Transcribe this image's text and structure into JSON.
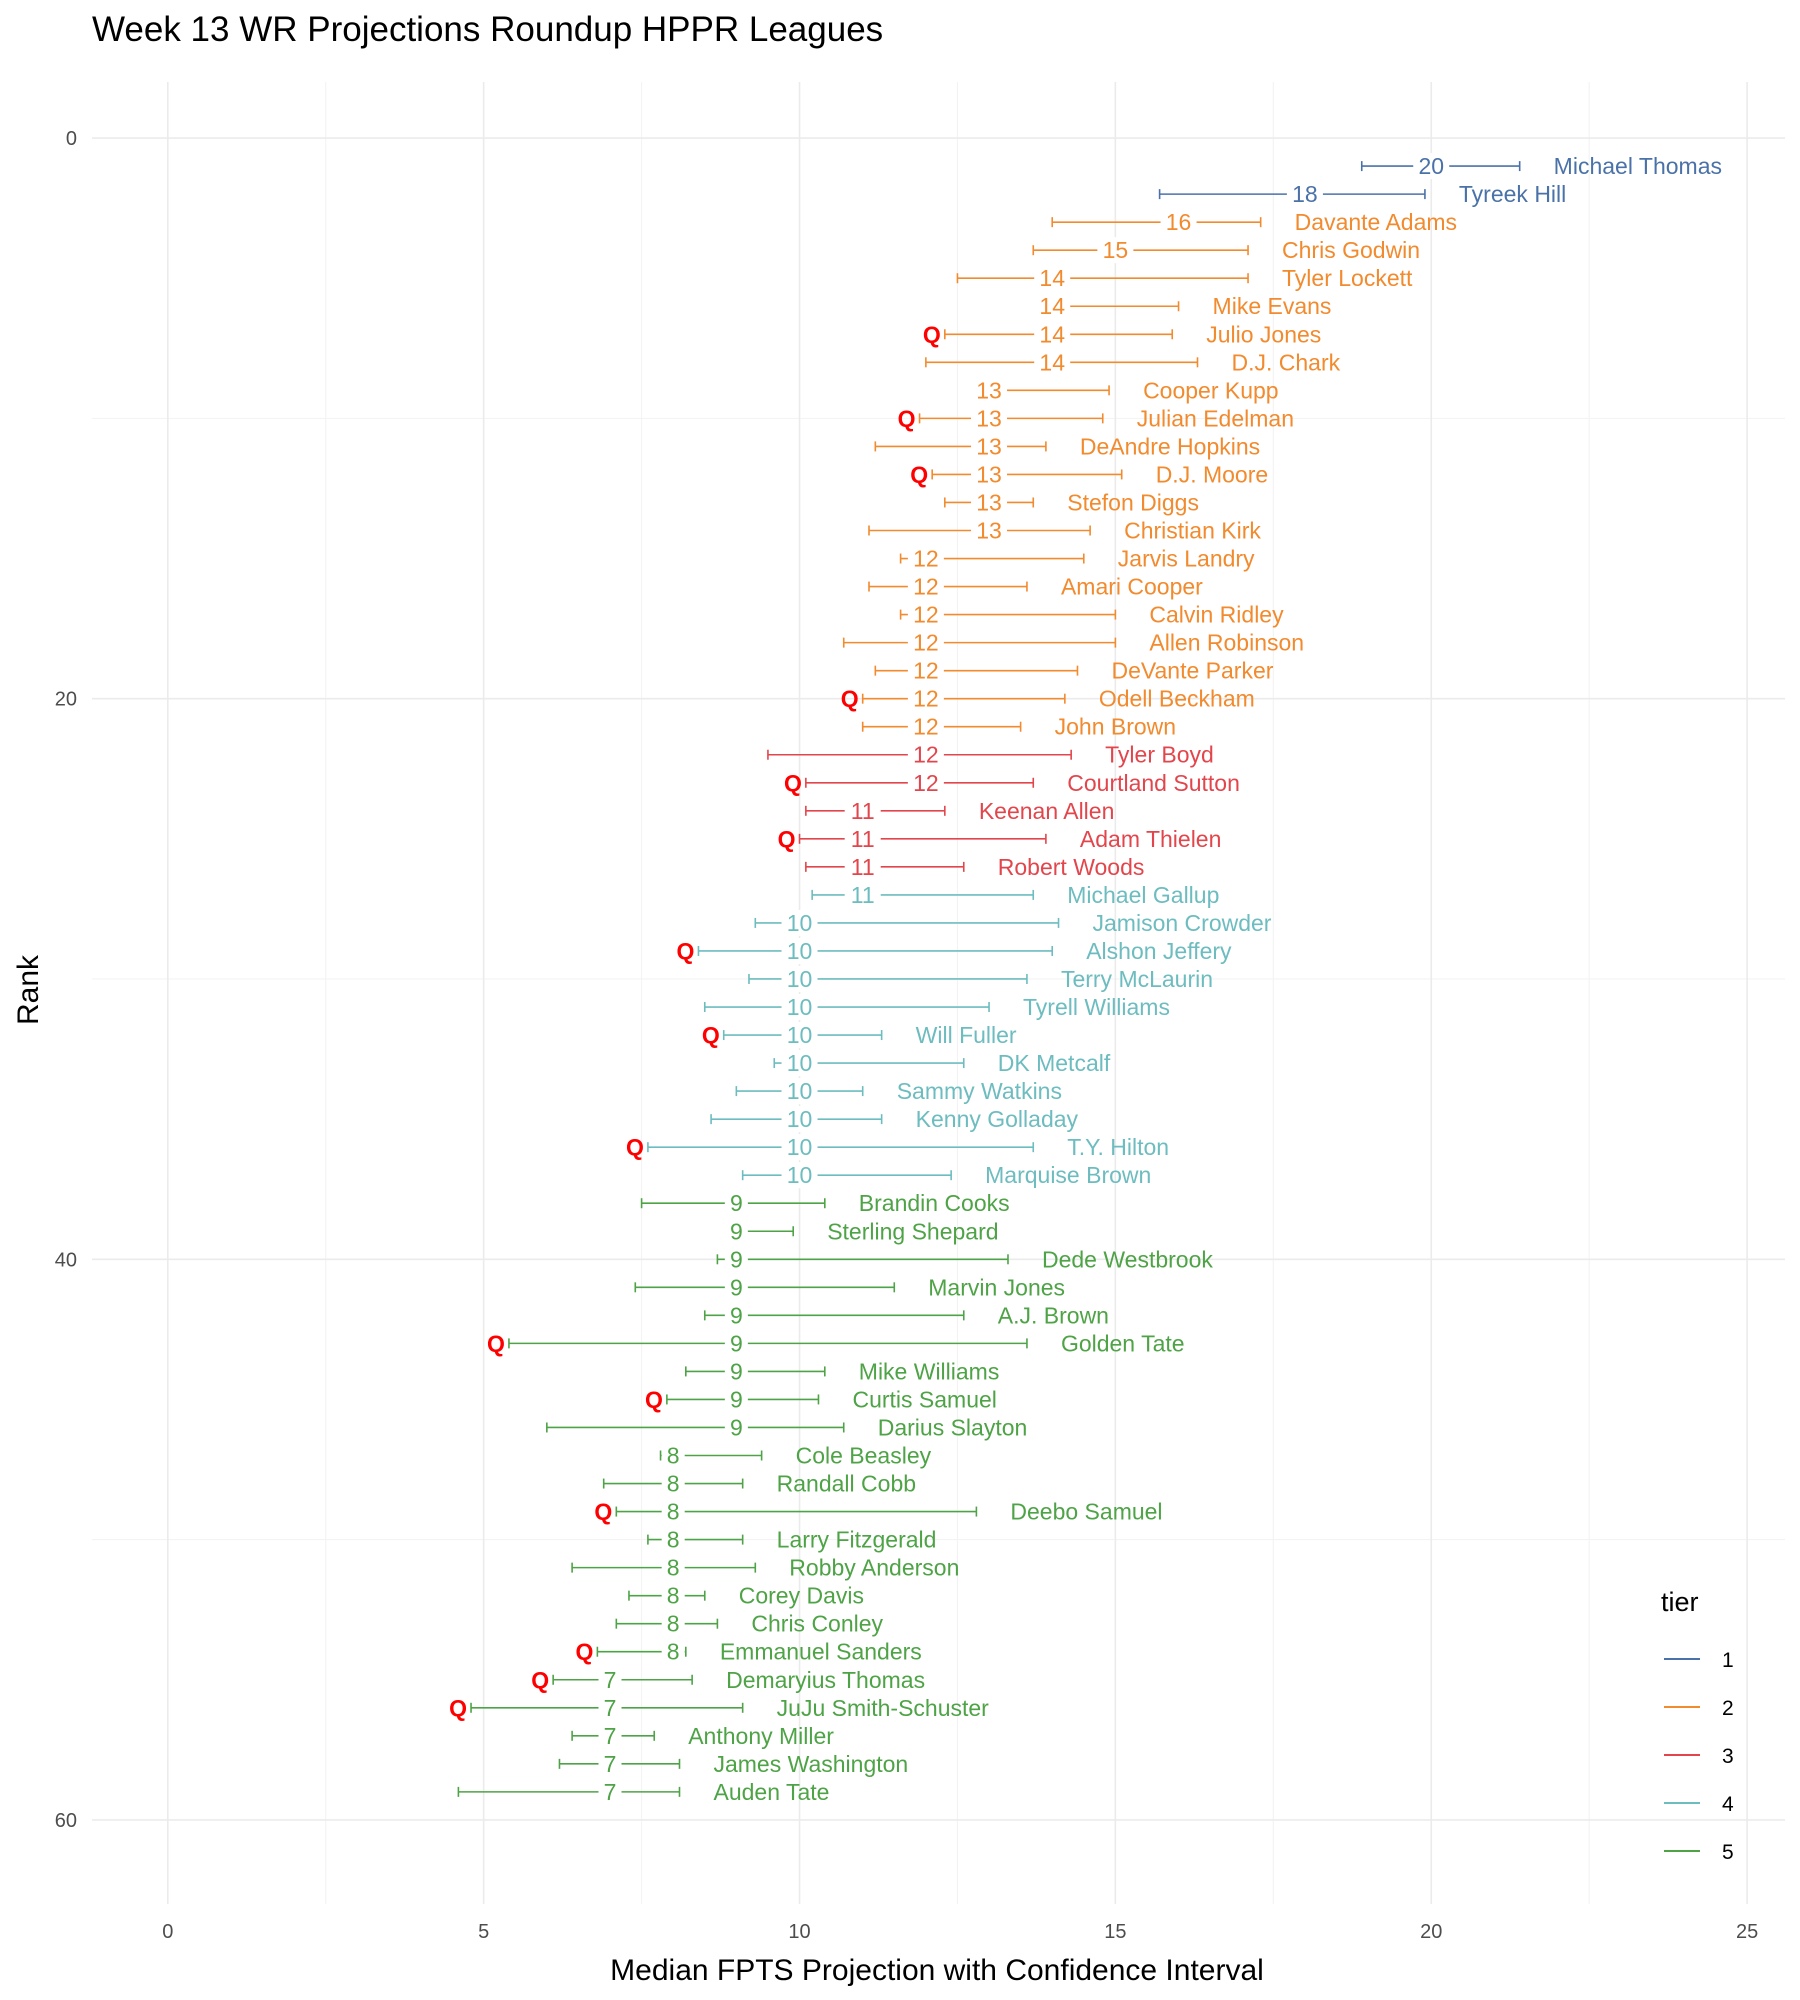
{
  "chart_data": {
    "type": "errorbar",
    "title": "Week 13 WR Projections Roundup HPPR Leagues",
    "xlabel": "Median FPTS Projection with Confidence Interval",
    "ylabel": "Rank",
    "xlim": [
      -1.2,
      25.6
    ],
    "ylim": [
      63,
      -2
    ],
    "x_ticks": [
      0,
      5,
      10,
      15,
      20,
      25
    ],
    "y_ticks": [
      0,
      20,
      40,
      60
    ],
    "legend": {
      "title": "tier",
      "placement": "right",
      "entries": [
        {
          "tier": "1",
          "color": "#4a72a8"
        },
        {
          "tier": "2",
          "color": "#f28a2e"
        },
        {
          "tier": "3",
          "color": "#e2464c"
        },
        {
          "tier": "4",
          "color": "#6dbcbf"
        },
        {
          "tier": "5",
          "color": "#4ea346"
        }
      ]
    },
    "q_marker": {
      "text": "Q",
      "color": "#ff0000"
    },
    "players": [
      {
        "rank": 1,
        "name": "Michael Thomas",
        "median": 20,
        "low": 18.9,
        "high": 21.4,
        "tier": 1,
        "q": false
      },
      {
        "rank": 2,
        "name": "Tyreek Hill",
        "median": 18,
        "low": 15.7,
        "high": 19.9,
        "tier": 1,
        "q": false
      },
      {
        "rank": 3,
        "name": "Davante Adams",
        "median": 16,
        "low": 14.0,
        "high": 17.3,
        "tier": 2,
        "q": false
      },
      {
        "rank": 4,
        "name": "Chris Godwin",
        "median": 15,
        "low": 13.7,
        "high": 17.1,
        "tier": 2,
        "q": false
      },
      {
        "rank": 5,
        "name": "Tyler Lockett",
        "median": 14,
        "low": 12.5,
        "high": 17.1,
        "tier": 2,
        "q": false
      },
      {
        "rank": 6,
        "name": "Mike Evans",
        "median": 14,
        "low": 13.9,
        "high": 16.0,
        "tier": 2,
        "q": false
      },
      {
        "rank": 7,
        "name": "Julio Jones",
        "median": 14,
        "low": 12.3,
        "high": 15.9,
        "tier": 2,
        "q": true
      },
      {
        "rank": 8,
        "name": "D.J. Chark",
        "median": 14,
        "low": 12.0,
        "high": 16.3,
        "tier": 2,
        "q": false
      },
      {
        "rank": 9,
        "name": "Cooper Kupp",
        "median": 13,
        "low": 12.8,
        "high": 14.9,
        "tier": 2,
        "q": false
      },
      {
        "rank": 10,
        "name": "Julian Edelman",
        "median": 13,
        "low": 11.9,
        "high": 14.8,
        "tier": 2,
        "q": true
      },
      {
        "rank": 11,
        "name": "DeAndre Hopkins",
        "median": 13,
        "low": 11.2,
        "high": 13.9,
        "tier": 2,
        "q": false
      },
      {
        "rank": 12,
        "name": "D.J. Moore",
        "median": 13,
        "low": 12.1,
        "high": 15.1,
        "tier": 2,
        "q": true
      },
      {
        "rank": 13,
        "name": "Stefon Diggs",
        "median": 13,
        "low": 12.3,
        "high": 13.7,
        "tier": 2,
        "q": false
      },
      {
        "rank": 14,
        "name": "Christian Kirk",
        "median": 13,
        "low": 11.1,
        "high": 14.6,
        "tier": 2,
        "q": false
      },
      {
        "rank": 15,
        "name": "Jarvis Landry",
        "median": 12,
        "low": 11.6,
        "high": 14.5,
        "tier": 2,
        "q": false
      },
      {
        "rank": 16,
        "name": "Amari Cooper",
        "median": 12,
        "low": 11.1,
        "high": 13.6,
        "tier": 2,
        "q": false
      },
      {
        "rank": 17,
        "name": "Calvin Ridley",
        "median": 12,
        "low": 11.6,
        "high": 15.0,
        "tier": 2,
        "q": false
      },
      {
        "rank": 18,
        "name": "Allen Robinson",
        "median": 12,
        "low": 10.7,
        "high": 15.0,
        "tier": 2,
        "q": false
      },
      {
        "rank": 19,
        "name": "DeVante Parker",
        "median": 12,
        "low": 11.2,
        "high": 14.4,
        "tier": 2,
        "q": false
      },
      {
        "rank": 20,
        "name": "Odell Beckham",
        "median": 12,
        "low": 11.0,
        "high": 14.2,
        "tier": 2,
        "q": true
      },
      {
        "rank": 21,
        "name": "John Brown",
        "median": 12,
        "low": 11.0,
        "high": 13.5,
        "tier": 2,
        "q": false
      },
      {
        "rank": 22,
        "name": "Tyler Boyd",
        "median": 12,
        "low": 9.5,
        "high": 14.3,
        "tier": 3,
        "q": false
      },
      {
        "rank": 23,
        "name": "Courtland Sutton",
        "median": 12,
        "low": 10.1,
        "high": 13.7,
        "tier": 3,
        "q": true
      },
      {
        "rank": 24,
        "name": "Keenan Allen",
        "median": 11,
        "low": 10.1,
        "high": 12.3,
        "tier": 3,
        "q": false
      },
      {
        "rank": 25,
        "name": "Adam Thielen",
        "median": 11,
        "low": 10.0,
        "high": 13.9,
        "tier": 3,
        "q": true
      },
      {
        "rank": 26,
        "name": "Robert Woods",
        "median": 11,
        "low": 10.1,
        "high": 12.6,
        "tier": 3,
        "q": false
      },
      {
        "rank": 27,
        "name": "Michael Gallup",
        "median": 11,
        "low": 10.2,
        "high": 13.7,
        "tier": 4,
        "q": false
      },
      {
        "rank": 28,
        "name": "Jamison Crowder",
        "median": 10,
        "low": 9.3,
        "high": 14.1,
        "tier": 4,
        "q": false
      },
      {
        "rank": 29,
        "name": "Alshon Jeffery",
        "median": 10,
        "low": 8.4,
        "high": 14.0,
        "tier": 4,
        "q": true
      },
      {
        "rank": 30,
        "name": "Terry McLaurin",
        "median": 10,
        "low": 9.2,
        "high": 13.6,
        "tier": 4,
        "q": false
      },
      {
        "rank": 31,
        "name": "Tyrell Williams",
        "median": 10,
        "low": 8.5,
        "high": 13.0,
        "tier": 4,
        "q": false
      },
      {
        "rank": 32,
        "name": "Will Fuller",
        "median": 10,
        "low": 8.8,
        "high": 11.3,
        "tier": 4,
        "q": true
      },
      {
        "rank": 33,
        "name": "DK Metcalf",
        "median": 10,
        "low": 9.6,
        "high": 12.6,
        "tier": 4,
        "q": false
      },
      {
        "rank": 34,
        "name": "Sammy Watkins",
        "median": 10,
        "low": 9.0,
        "high": 11.0,
        "tier": 4,
        "q": false
      },
      {
        "rank": 35,
        "name": "Kenny Golladay",
        "median": 10,
        "low": 8.6,
        "high": 11.3,
        "tier": 4,
        "q": false
      },
      {
        "rank": 36,
        "name": "T.Y. Hilton",
        "median": 10,
        "low": 7.6,
        "high": 13.7,
        "tier": 4,
        "q": true
      },
      {
        "rank": 37,
        "name": "Marquise Brown",
        "median": 10,
        "low": 9.1,
        "high": 12.4,
        "tier": 4,
        "q": false
      },
      {
        "rank": 38,
        "name": "Brandin Cooks",
        "median": 9,
        "low": 7.5,
        "high": 10.4,
        "tier": 5,
        "q": false
      },
      {
        "rank": 39,
        "name": "Sterling Shepard",
        "median": 9,
        "low": 9.0,
        "high": 9.9,
        "tier": 5,
        "q": false
      },
      {
        "rank": 40,
        "name": "Dede Westbrook",
        "median": 9,
        "low": 8.7,
        "high": 13.3,
        "tier": 5,
        "q": false
      },
      {
        "rank": 41,
        "name": "Marvin Jones",
        "median": 9,
        "low": 7.4,
        "high": 11.5,
        "tier": 5,
        "q": false
      },
      {
        "rank": 42,
        "name": "A.J. Brown",
        "median": 9,
        "low": 8.5,
        "high": 12.6,
        "tier": 5,
        "q": false
      },
      {
        "rank": 43,
        "name": "Golden Tate",
        "median": 9,
        "low": 5.4,
        "high": 13.6,
        "tier": 5,
        "q": true
      },
      {
        "rank": 44,
        "name": "Mike Williams",
        "median": 9,
        "low": 8.2,
        "high": 10.4,
        "tier": 5,
        "q": false
      },
      {
        "rank": 45,
        "name": "Curtis Samuel",
        "median": 9,
        "low": 7.9,
        "high": 10.3,
        "tier": 5,
        "q": true
      },
      {
        "rank": 46,
        "name": "Darius Slayton",
        "median": 9,
        "low": 6.0,
        "high": 10.7,
        "tier": 5,
        "q": false
      },
      {
        "rank": 47,
        "name": "Cole Beasley",
        "median": 8,
        "low": 7.8,
        "high": 9.4,
        "tier": 5,
        "q": false
      },
      {
        "rank": 48,
        "name": "Randall Cobb",
        "median": 8,
        "low": 6.9,
        "high": 9.1,
        "tier": 5,
        "q": false
      },
      {
        "rank": 49,
        "name": "Deebo Samuel",
        "median": 8,
        "low": 7.1,
        "high": 12.8,
        "tier": 5,
        "q": true
      },
      {
        "rank": 50,
        "name": "Larry Fitzgerald",
        "median": 8,
        "low": 7.6,
        "high": 9.1,
        "tier": 5,
        "q": false
      },
      {
        "rank": 51,
        "name": "Robby Anderson",
        "median": 8,
        "low": 6.4,
        "high": 9.3,
        "tier": 5,
        "q": false
      },
      {
        "rank": 52,
        "name": "Corey Davis",
        "median": 8,
        "low": 7.3,
        "high": 8.5,
        "tier": 5,
        "q": false
      },
      {
        "rank": 53,
        "name": "Chris Conley",
        "median": 8,
        "low": 7.1,
        "high": 8.7,
        "tier": 5,
        "q": false
      },
      {
        "rank": 54,
        "name": "Emmanuel Sanders",
        "median": 8,
        "low": 6.8,
        "high": 8.2,
        "tier": 5,
        "q": true
      },
      {
        "rank": 55,
        "name": "Demaryius Thomas",
        "median": 7,
        "low": 6.1,
        "high": 8.3,
        "tier": 5,
        "q": true
      },
      {
        "rank": 56,
        "name": "JuJu Smith-Schuster",
        "median": 7,
        "low": 4.8,
        "high": 9.1,
        "tier": 5,
        "q": true
      },
      {
        "rank": 57,
        "name": "Anthony Miller",
        "median": 7,
        "low": 6.4,
        "high": 7.7,
        "tier": 5,
        "q": false
      },
      {
        "rank": 58,
        "name": "James Washington",
        "median": 7,
        "low": 6.2,
        "high": 8.1,
        "tier": 5,
        "q": false
      },
      {
        "rank": 59,
        "name": "Auden Tate",
        "median": 7,
        "low": 4.6,
        "high": 8.1,
        "tier": 5,
        "q": false
      }
    ]
  }
}
